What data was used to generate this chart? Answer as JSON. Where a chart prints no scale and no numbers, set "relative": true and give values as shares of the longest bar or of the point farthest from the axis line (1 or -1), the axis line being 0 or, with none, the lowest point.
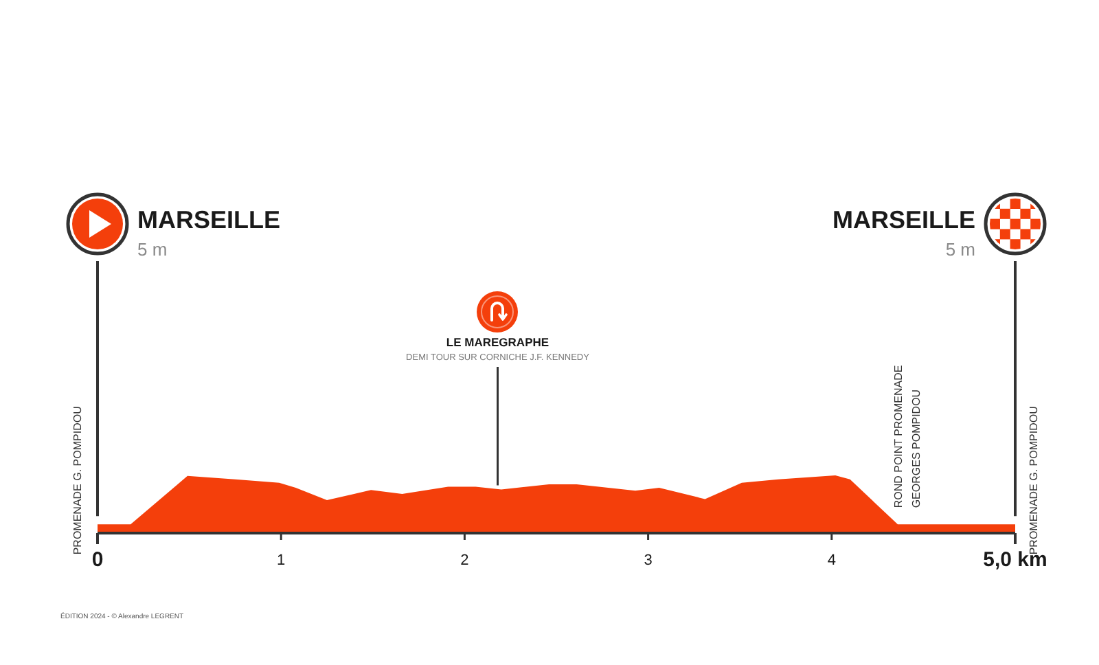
{
  "chart_data": {
    "type": "area",
    "relative": true,
    "color": "#f43f0b",
    "x": [
      0,
      0.18,
      0.49,
      0.75,
      0.99,
      1.08,
      1.25,
      1.49,
      1.66,
      1.91,
      2.06,
      2.2,
      2.46,
      2.61,
      2.93,
      3.06,
      3.31,
      3.51,
      3.71,
      4.02,
      4.1,
      4.36,
      5
    ],
    "values": [
      0.13,
      0.13,
      0.99,
      0.93,
      0.87,
      0.78,
      0.56,
      0.74,
      0.67,
      0.8,
      0.8,
      0.75,
      0.84,
      0.84,
      0.73,
      0.78,
      0.58,
      0.87,
      0.93,
      1,
      0.93,
      0.13,
      0.13
    ],
    "xlim": [
      0,
      5
    ],
    "xticks": [
      0,
      1,
      2,
      3,
      4,
      {
        "value": 5,
        "label": "5,0 km"
      }
    ],
    "annotations": [
      "MARSEILLE",
      "5 m",
      "MARSEILLE",
      "5 m",
      "LE MAREGRAPHE",
      {
        "text": "DEMI TOUR SUR CORNICHE J.F. KENNEDY",
        "x": 2.18,
        "y": 0.75
      },
      {
        "text": "PROMENADE G. POMPIDOU",
        "x": 0,
        "y": 0.13
      },
      {
        "text": "PROMENADE G. POMPIDOU",
        "x": 5,
        "y": 0.13
      },
      {
        "text": "ROND POINT PROMENADE GEORGES POMPIDOU",
        "x": 4.36,
        "y": 0.13
      },
      "ÉDITION 2024 - © Alexandre LEGRENT"
    ]
  }
}
